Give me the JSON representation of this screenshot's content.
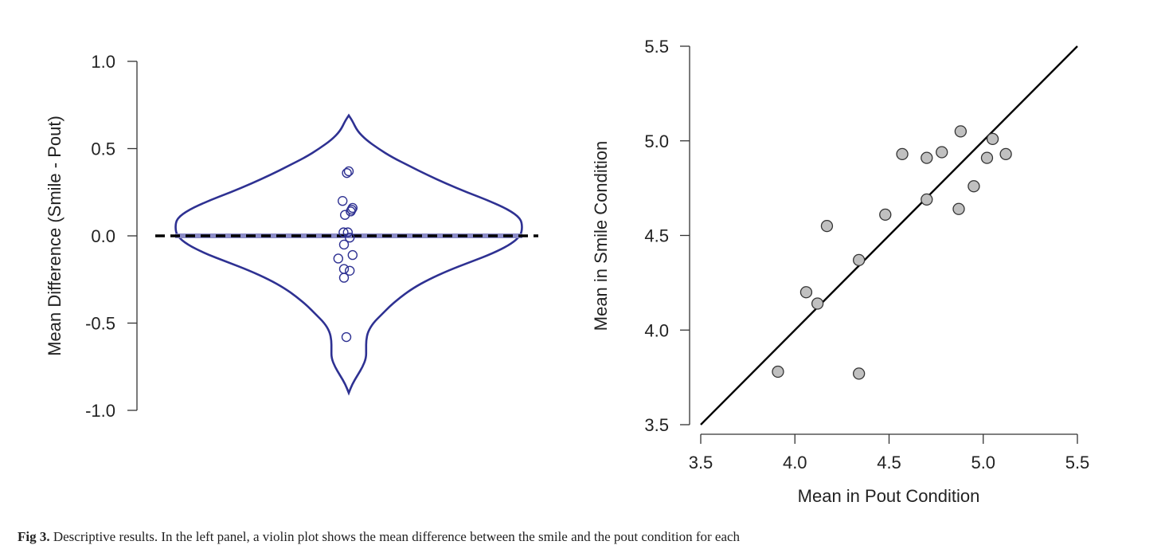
{
  "caption": {
    "label": "Fig 3.",
    "text": "Descriptive results. In the left panel, a violin plot shows the mean difference between the smile and the pout condition for each"
  },
  "chart_data": [
    {
      "type": "violin",
      "title": "",
      "xlabel": "",
      "ylabel": "Mean Difference (Smile - Pout)",
      "ylim": [
        -1.0,
        1.0
      ],
      "yticks": [
        "1.0",
        "0.5",
        "0.0",
        "-0.5",
        "-1.0"
      ],
      "ytick_values": [
        1.0,
        0.5,
        0.0,
        -0.5,
        -1.0
      ],
      "reference_line": 0.0,
      "points": [
        {
          "dx": -0.04,
          "y": 0.36
        },
        {
          "dx": 0.0,
          "y": 0.37
        },
        {
          "dx": -0.13,
          "y": 0.2
        },
        {
          "dx": 0.04,
          "y": 0.14
        },
        {
          "dx": 0.06,
          "y": 0.15
        },
        {
          "dx": 0.08,
          "y": 0.16
        },
        {
          "dx": -0.08,
          "y": 0.12
        },
        {
          "dx": -0.11,
          "y": 0.02
        },
        {
          "dx": -0.02,
          "y": 0.02
        },
        {
          "dx": 0.02,
          "y": -0.01
        },
        {
          "dx": -0.1,
          "y": -0.05
        },
        {
          "dx": -0.22,
          "y": -0.13
        },
        {
          "dx": 0.08,
          "y": -0.11
        },
        {
          "dx": -0.1,
          "y": -0.19
        },
        {
          "dx": 0.02,
          "y": -0.2
        },
        {
          "dx": -0.1,
          "y": -0.24
        },
        {
          "dx": -0.05,
          "y": -0.58
        }
      ],
      "density": [
        {
          "y": 0.69,
          "w": 0.0
        },
        {
          "y": 0.66,
          "w": 0.02
        },
        {
          "y": 0.6,
          "w": 0.05
        },
        {
          "y": 0.55,
          "w": 0.1
        },
        {
          "y": 0.5,
          "w": 0.17
        },
        {
          "y": 0.45,
          "w": 0.25
        },
        {
          "y": 0.4,
          "w": 0.35
        },
        {
          "y": 0.35,
          "w": 0.45
        },
        {
          "y": 0.3,
          "w": 0.56
        },
        {
          "y": 0.25,
          "w": 0.68
        },
        {
          "y": 0.2,
          "w": 0.81
        },
        {
          "y": 0.15,
          "w": 0.92
        },
        {
          "y": 0.1,
          "w": 0.99
        },
        {
          "y": 0.05,
          "w": 1.0
        },
        {
          "y": 0.0,
          "w": 0.99
        },
        {
          "y": -0.05,
          "w": 0.93
        },
        {
          "y": -0.1,
          "w": 0.83
        },
        {
          "y": -0.15,
          "w": 0.7
        },
        {
          "y": -0.2,
          "w": 0.57
        },
        {
          "y": -0.25,
          "w": 0.46
        },
        {
          "y": -0.3,
          "w": 0.37
        },
        {
          "y": -0.35,
          "w": 0.3
        },
        {
          "y": -0.4,
          "w": 0.24
        },
        {
          "y": -0.45,
          "w": 0.19
        },
        {
          "y": -0.5,
          "w": 0.14
        },
        {
          "y": -0.55,
          "w": 0.11
        },
        {
          "y": -0.6,
          "w": 0.1
        },
        {
          "y": -0.65,
          "w": 0.1
        },
        {
          "y": -0.7,
          "w": 0.1
        },
        {
          "y": -0.75,
          "w": 0.08
        },
        {
          "y": -0.8,
          "w": 0.05
        },
        {
          "y": -0.85,
          "w": 0.02
        },
        {
          "y": -0.9,
          "w": 0.0
        }
      ],
      "colors": {
        "violin": "#2e3192",
        "points": "#2e3192",
        "reference": "#000000",
        "band": "#8c8cc8"
      }
    },
    {
      "type": "scatter",
      "title": "",
      "xlabel": "Mean in Pout Condition",
      "ylabel": "Mean in Smile Condition",
      "xlim": [
        3.5,
        5.5
      ],
      "ylim": [
        3.5,
        5.5
      ],
      "xticks": [
        "3.5",
        "4.0",
        "4.5",
        "5.0",
        "5.5"
      ],
      "xtick_values": [
        3.5,
        4.0,
        4.5,
        5.0,
        5.5
      ],
      "yticks": [
        "5.5",
        "5.0",
        "4.5",
        "4.0",
        "3.5"
      ],
      "ytick_values": [
        5.5,
        5.0,
        4.5,
        4.0,
        3.5
      ],
      "identity_line": true,
      "points": [
        {
          "x": 3.91,
          "y": 3.78
        },
        {
          "x": 4.06,
          "y": 4.2
        },
        {
          "x": 4.12,
          "y": 4.14
        },
        {
          "x": 4.17,
          "y": 4.55
        },
        {
          "x": 4.34,
          "y": 4.37
        },
        {
          "x": 4.34,
          "y": 3.77
        },
        {
          "x": 4.48,
          "y": 4.61
        },
        {
          "x": 4.57,
          "y": 4.93
        },
        {
          "x": 4.7,
          "y": 4.91
        },
        {
          "x": 4.7,
          "y": 4.69
        },
        {
          "x": 4.78,
          "y": 4.94
        },
        {
          "x": 4.87,
          "y": 4.64
        },
        {
          "x": 4.88,
          "y": 5.05
        },
        {
          "x": 4.95,
          "y": 4.76
        },
        {
          "x": 5.02,
          "y": 4.91
        },
        {
          "x": 5.05,
          "y": 5.01
        },
        {
          "x": 5.12,
          "y": 4.93
        }
      ],
      "colors": {
        "points_fill": "#c0c0c0",
        "points_stroke": "#333333",
        "line": "#000000"
      }
    }
  ]
}
